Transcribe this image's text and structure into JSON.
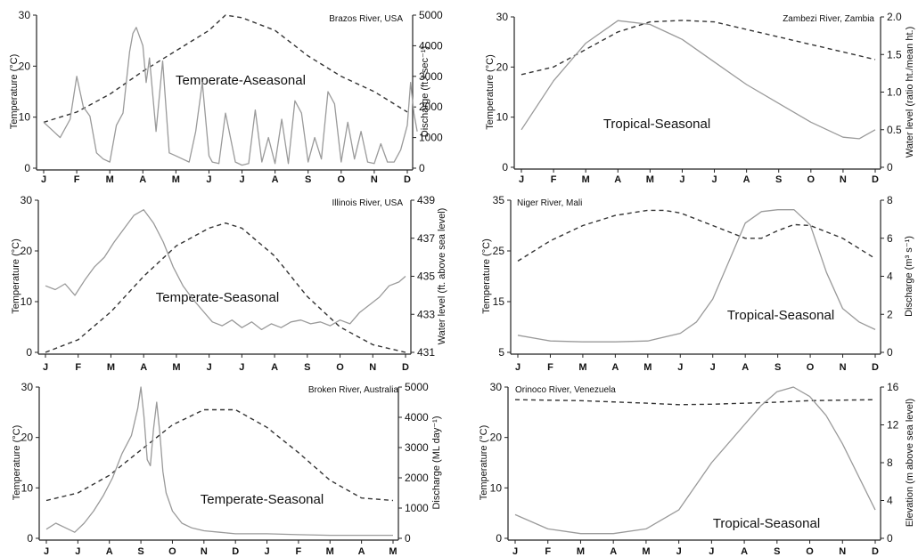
{
  "figure": {
    "colors": {
      "temperature": "#333333",
      "flow": "#9a9a9a",
      "axis": "#222222"
    },
    "line_styles": {
      "temperature": "dashed",
      "flow": "solid-light"
    }
  },
  "chart_data": [
    {
      "type": "line",
      "river": "Brazos River, USA",
      "regime": "Temperate-Aseasonal",
      "months": [
        "J",
        "F",
        "M",
        "A",
        "M",
        "J",
        "J",
        "A",
        "S",
        "O",
        "N",
        "D"
      ],
      "ylabel": "Temperature (°C)",
      "ylim": [
        0,
        30
      ],
      "yticks": [
        0,
        10,
        20,
        30
      ],
      "ylabel2": "Discharge  (ft.³ sec⁻¹)",
      "ylim2": [
        0,
        5000
      ],
      "yticks2": [
        0,
        1000,
        2000,
        3000,
        4000,
        5000
      ],
      "series": [
        {
          "role": "temperature",
          "axis": "left",
          "x": [
            0,
            1,
            2,
            3,
            4,
            5,
            5.5,
            6,
            7,
            8,
            9,
            10,
            11
          ],
          "y": [
            9,
            11,
            14.5,
            19,
            23,
            27,
            30,
            29.5,
            27,
            22,
            18,
            15,
            11
          ]
        },
        {
          "role": "flow",
          "axis": "right",
          "x": [
            0,
            0.3,
            0.5,
            0.8,
            1,
            1.2,
            1.4,
            1.6,
            1.8,
            2,
            2.2,
            2.4,
            2.6,
            2.7,
            2.8,
            3,
            3.1,
            3.2,
            3.4,
            3.6,
            3.8,
            4,
            4.2,
            4.4,
            4.6,
            4.8,
            5,
            5.1,
            5.3,
            5.5,
            5.8,
            6,
            6.2,
            6.4,
            6.6,
            6.8,
            7,
            7.2,
            7.4,
            7.6,
            7.8,
            8,
            8.2,
            8.4,
            8.6,
            8.8,
            9,
            9.2,
            9.4,
            9.6,
            9.8,
            10,
            10.2,
            10.4,
            10.6,
            10.8,
            11,
            11.1,
            11.2,
            11.3
          ],
          "y": [
            1500,
            1200,
            1000,
            1600,
            3000,
            2000,
            1700,
            500,
            300,
            200,
            1400,
            1800,
            3800,
            4400,
            4600,
            4000,
            2800,
            3600,
            1200,
            3500,
            500,
            400,
            300,
            200,
            1200,
            2800,
            400,
            200,
            150,
            1800,
            200,
            100,
            150,
            1900,
            200,
            1000,
            150,
            1600,
            150,
            2200,
            1800,
            200,
            1000,
            300,
            2500,
            2100,
            200,
            1500,
            300,
            1200,
            200,
            150,
            800,
            200,
            200,
            600,
            1400,
            2800,
            1800,
            1200
          ]
        }
      ]
    },
    {
      "type": "line",
      "river": "Zambezi River, Zambia",
      "regime": "Tropical-Seasonal",
      "months": [
        "J",
        "F",
        "M",
        "A",
        "M",
        "J",
        "J",
        "A",
        "S",
        "O",
        "N",
        "D"
      ],
      "ylabel": "Temperature (°C)",
      "ylim": [
        0,
        30
      ],
      "yticks": [
        0,
        10,
        20,
        30
      ],
      "ylabel2": "Water level (ratio ht./mean ht.)",
      "ylim2": [
        0,
        2.0
      ],
      "yticks2": [
        "0",
        "0.5",
        "1.0",
        "1.5",
        "2.0"
      ],
      "series": [
        {
          "role": "temperature",
          "axis": "left",
          "x": [
            0,
            1,
            2,
            3,
            4,
            5,
            6,
            7,
            8,
            9,
            10,
            11
          ],
          "y": [
            18.5,
            20,
            23.5,
            27,
            29,
            29.3,
            29,
            27.5,
            26,
            24.5,
            23,
            21.5
          ]
        },
        {
          "role": "flow",
          "axis": "right",
          "x": [
            0,
            1,
            2,
            3,
            4,
            5,
            6,
            7,
            8,
            9,
            10,
            10.5,
            11
          ],
          "y": [
            0.5,
            1.15,
            1.65,
            1.95,
            1.9,
            1.7,
            1.4,
            1.1,
            0.85,
            0.6,
            0.4,
            0.38,
            0.5
          ]
        }
      ]
    },
    {
      "type": "line",
      "river": "Illinois River, USA",
      "regime": "Temperate-Seasonal",
      "months": [
        "J",
        "F",
        "M",
        "A",
        "M",
        "J",
        "J",
        "A",
        "S",
        "O",
        "N",
        "D"
      ],
      "ylabel": "Temperature (°C)",
      "ylim": [
        0,
        30
      ],
      "yticks": [
        0,
        10,
        20,
        30
      ],
      "ylabel2": "Water level (ft. above sea level)",
      "ylim2": [
        431,
        439
      ],
      "yticks2": [
        431,
        433,
        435,
        437,
        439
      ],
      "series": [
        {
          "role": "temperature",
          "axis": "left",
          "x": [
            0,
            1,
            2,
            3,
            4,
            5,
            5.5,
            6,
            7,
            8,
            9,
            10,
            11
          ],
          "y": [
            0,
            2.5,
            8,
            15,
            21,
            24.5,
            25.5,
            24.5,
            19,
            11,
            5,
            1.5,
            0
          ]
        },
        {
          "role": "flow",
          "axis": "right",
          "x": [
            0,
            0.3,
            0.6,
            0.9,
            1.2,
            1.5,
            1.8,
            2.1,
            2.4,
            2.7,
            3,
            3.3,
            3.6,
            3.9,
            4.2,
            4.5,
            4.8,
            5.1,
            5.4,
            5.7,
            6,
            6.3,
            6.6,
            6.9,
            7.2,
            7.5,
            7.8,
            8.1,
            8.4,
            8.7,
            9,
            9.3,
            9.6,
            9.9,
            10.2,
            10.5,
            10.8,
            11
          ],
          "y": [
            434.5,
            434.3,
            434.6,
            434,
            434.8,
            435.5,
            436,
            436.8,
            437.5,
            438.2,
            438.5,
            437.8,
            436.8,
            435.5,
            434.5,
            433.8,
            433.2,
            432.6,
            432.4,
            432.7,
            432.3,
            432.6,
            432.2,
            432.5,
            432.3,
            432.6,
            432.7,
            432.5,
            432.6,
            432.4,
            432.7,
            432.5,
            433.1,
            433.5,
            433.9,
            434.5,
            434.7,
            435
          ]
        }
      ]
    },
    {
      "type": "line",
      "river": "Niger River, Mali",
      "regime": "Tropical-Seasonal",
      "months": [
        "J",
        "F",
        "M",
        "A",
        "M",
        "J",
        "J",
        "A",
        "S",
        "O",
        "N",
        "D"
      ],
      "ylabel": "Temperature (°C)",
      "ylim": [
        5,
        35
      ],
      "yticks": [
        5,
        15,
        25,
        35
      ],
      "ylabel2": "Discharge (m³ s⁻¹)",
      "ylim2": [
        0,
        8
      ],
      "yticks2": [
        0,
        2,
        4,
        6,
        8
      ],
      "series": [
        {
          "role": "temperature",
          "axis": "left",
          "x": [
            0,
            1,
            2,
            3,
            4,
            4.5,
            5,
            6,
            7,
            7.5,
            8,
            8.5,
            9,
            10,
            11
          ],
          "y": [
            23,
            27,
            30,
            32,
            33,
            33,
            32.5,
            30,
            27.5,
            27.5,
            29,
            30.2,
            30,
            27.5,
            23.5
          ]
        },
        {
          "role": "flow",
          "axis": "right",
          "x": [
            0,
            1,
            2,
            3,
            4,
            5,
            5.5,
            6,
            6.5,
            7,
            7.5,
            8,
            8.5,
            9,
            9.5,
            10,
            10.5,
            11
          ],
          "y": [
            0.9,
            0.6,
            0.55,
            0.55,
            0.6,
            1,
            1.6,
            2.8,
            4.8,
            6.8,
            7.4,
            7.5,
            7.5,
            6.7,
            4.2,
            2.3,
            1.6,
            1.2
          ]
        }
      ]
    },
    {
      "type": "line",
      "river": "Broken River, Australia",
      "regime": "Temperate-Seasonal",
      "months": [
        "J",
        "J",
        "A",
        "S",
        "O",
        "N",
        "D",
        "J",
        "F",
        "M",
        "A",
        "M"
      ],
      "ylabel": "Temperature (°C)",
      "ylim": [
        0,
        30
      ],
      "yticks": [
        0,
        10,
        20,
        30
      ],
      "ylabel2": "Discharge (ML day⁻¹)",
      "ylim2": [
        0,
        5000
      ],
      "yticks2": [
        0,
        1000,
        2000,
        3000,
        4000,
        5000
      ],
      "series": [
        {
          "role": "temperature",
          "axis": "left",
          "x": [
            0,
            1,
            2,
            3,
            4,
            5,
            6,
            7,
            8,
            9,
            10,
            11
          ],
          "y": [
            7.5,
            9,
            12.5,
            17.5,
            22.5,
            25.5,
            25.5,
            22,
            17,
            11.5,
            8,
            7.5
          ]
        },
        {
          "role": "flow",
          "axis": "right",
          "x": [
            0,
            0.3,
            0.6,
            0.9,
            1.2,
            1.5,
            1.8,
            2.1,
            2.4,
            2.7,
            2.9,
            3,
            3.1,
            3.2,
            3.3,
            3.4,
            3.5,
            3.6,
            3.7,
            3.8,
            4,
            4.3,
            4.6,
            5,
            5.5,
            6,
            7,
            8,
            9,
            10,
            11
          ],
          "y": [
            300,
            500,
            350,
            200,
            500,
            900,
            1400,
            2000,
            2800,
            3400,
            4300,
            5000,
            4000,
            2600,
            2400,
            3600,
            4500,
            3500,
            2200,
            1500,
            900,
            500,
            350,
            250,
            200,
            150,
            150,
            120,
            100,
            100,
            100
          ]
        }
      ]
    },
    {
      "type": "line",
      "river": "Orinoco River, Venezuela",
      "regime": "Tropical-Seasonal",
      "months": [
        "J",
        "F",
        "M",
        "A",
        "M",
        "J",
        "J",
        "A",
        "S",
        "O",
        "N",
        "D"
      ],
      "ylabel": "Temperature (°C)",
      "ylim": [
        0,
        30
      ],
      "yticks": [
        0,
        10,
        20,
        30
      ],
      "ylabel2": "Elevation (m above sea level)",
      "ylim2": [
        0,
        16
      ],
      "yticks2": [
        0,
        4,
        8,
        12,
        16
      ],
      "series": [
        {
          "role": "temperature",
          "axis": "left",
          "x": [
            0,
            2,
            4,
            5,
            6,
            8,
            9,
            10,
            11
          ],
          "y": [
            27.5,
            27.3,
            26.8,
            26.5,
            26.6,
            27,
            27.3,
            27.4,
            27.5
          ]
        },
        {
          "role": "flow",
          "axis": "right",
          "x": [
            0,
            1,
            2,
            3,
            4,
            5,
            6,
            7,
            7.5,
            8,
            8.5,
            9,
            9.5,
            10,
            11
          ],
          "y": [
            2.5,
            1,
            0.5,
            0.5,
            1,
            3,
            8,
            12,
            14,
            15.5,
            16,
            15,
            13,
            10,
            3
          ]
        }
      ]
    }
  ]
}
